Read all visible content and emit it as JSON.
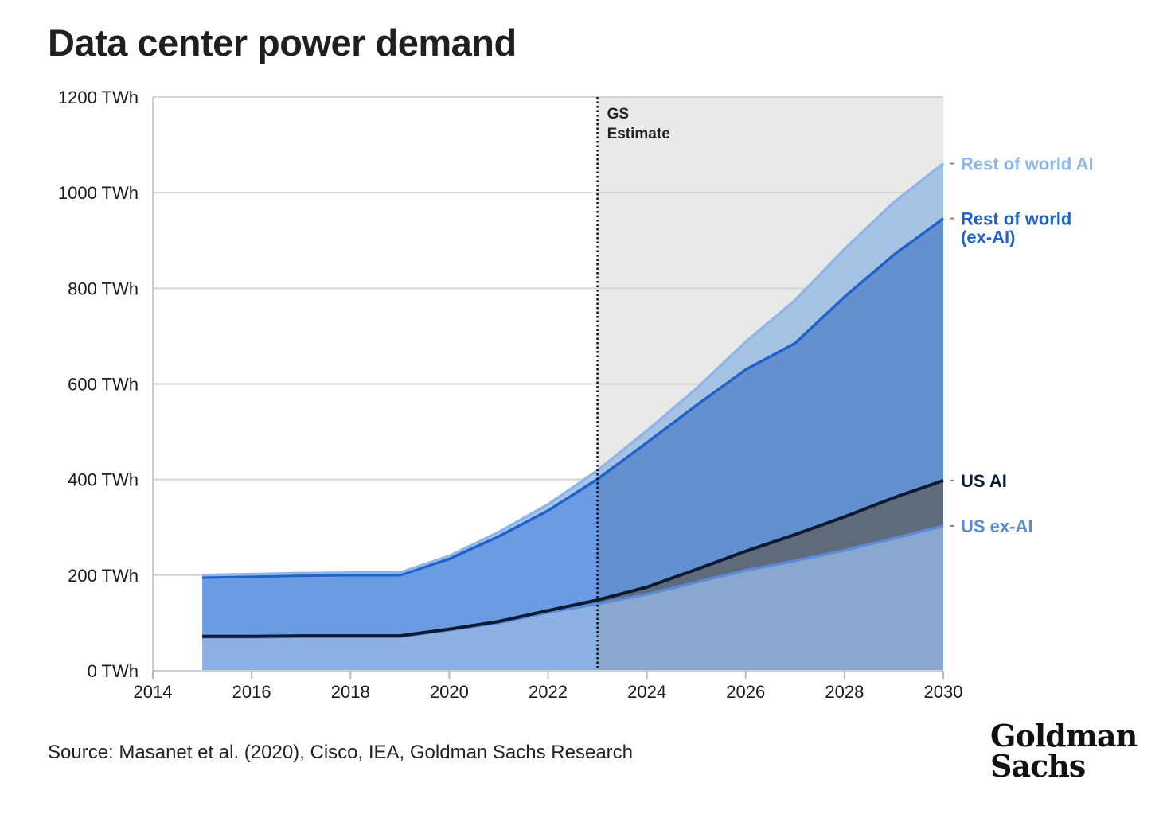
{
  "title": "Data center power demand",
  "source": "Source: Masanet et al. (2020), Cisco, IEA, Goldman Sachs Research",
  "logo": {
    "line1": "Goldman",
    "line2": "Sachs"
  },
  "chart_data": {
    "type": "area",
    "stacked": true,
    "title": "Data center power demand",
    "xlabel": "",
    "ylabel": "",
    "xlim": [
      2014,
      2030
    ],
    "ylim": [
      0,
      1200
    ],
    "x_ticks": [
      "2014",
      "2016",
      "2018",
      "2020",
      "2022",
      "2024",
      "2026",
      "2028",
      "2030"
    ],
    "y_ticks": [
      "0 TWh",
      "200 TWh",
      "400 TWh",
      "600 TWh",
      "800 TWh",
      "1000 TWh",
      "1200 TWh"
    ],
    "grid": "horizontal",
    "x": [
      2015,
      2016,
      2017,
      2018,
      2019,
      2020,
      2021,
      2022,
      2023,
      2024,
      2025,
      2026,
      2027,
      2028,
      2029,
      2030
    ],
    "series": [
      {
        "name": "US ex-AI",
        "color": "#5b8bd6",
        "values": [
          70,
          70,
          71,
          71,
          71,
          85,
          100,
          122,
          140,
          160,
          185,
          210,
          230,
          252,
          277,
          303
        ]
      },
      {
        "name": "US AI",
        "color": "#0c1b33",
        "values": [
          2,
          2,
          2,
          2,
          2,
          2,
          3,
          4,
          8,
          15,
          27,
          40,
          55,
          70,
          85,
          95
        ]
      },
      {
        "name": "Rest of world (ex-AI)",
        "color": "#1f62c9",
        "values": [
          123,
          125,
          126,
          127,
          127,
          147,
          178,
          209,
          253,
          302,
          343,
          380,
          400,
          460,
          508,
          548
        ]
      },
      {
        "name": "Rest of world AI",
        "color": "#8fb6e6",
        "values": [
          5,
          5,
          5,
          5,
          5,
          6,
          9,
          13,
          18,
          25,
          35,
          58,
          90,
          100,
          110,
          115
        ]
      }
    ],
    "series_labels": [
      {
        "text": "Rest of world AI",
        "color": "#8fb6e6"
      },
      {
        "text": "Rest of world",
        "text2": "(ex-AI)",
        "color": "#1f62c9"
      },
      {
        "text": "US AI",
        "color": "#0c1b33"
      },
      {
        "text": "US ex-AI",
        "color": "#5b8bd6"
      }
    ],
    "estimate_start": 2023,
    "annotation": {
      "line1": "GS",
      "line2": "Estimate"
    }
  }
}
